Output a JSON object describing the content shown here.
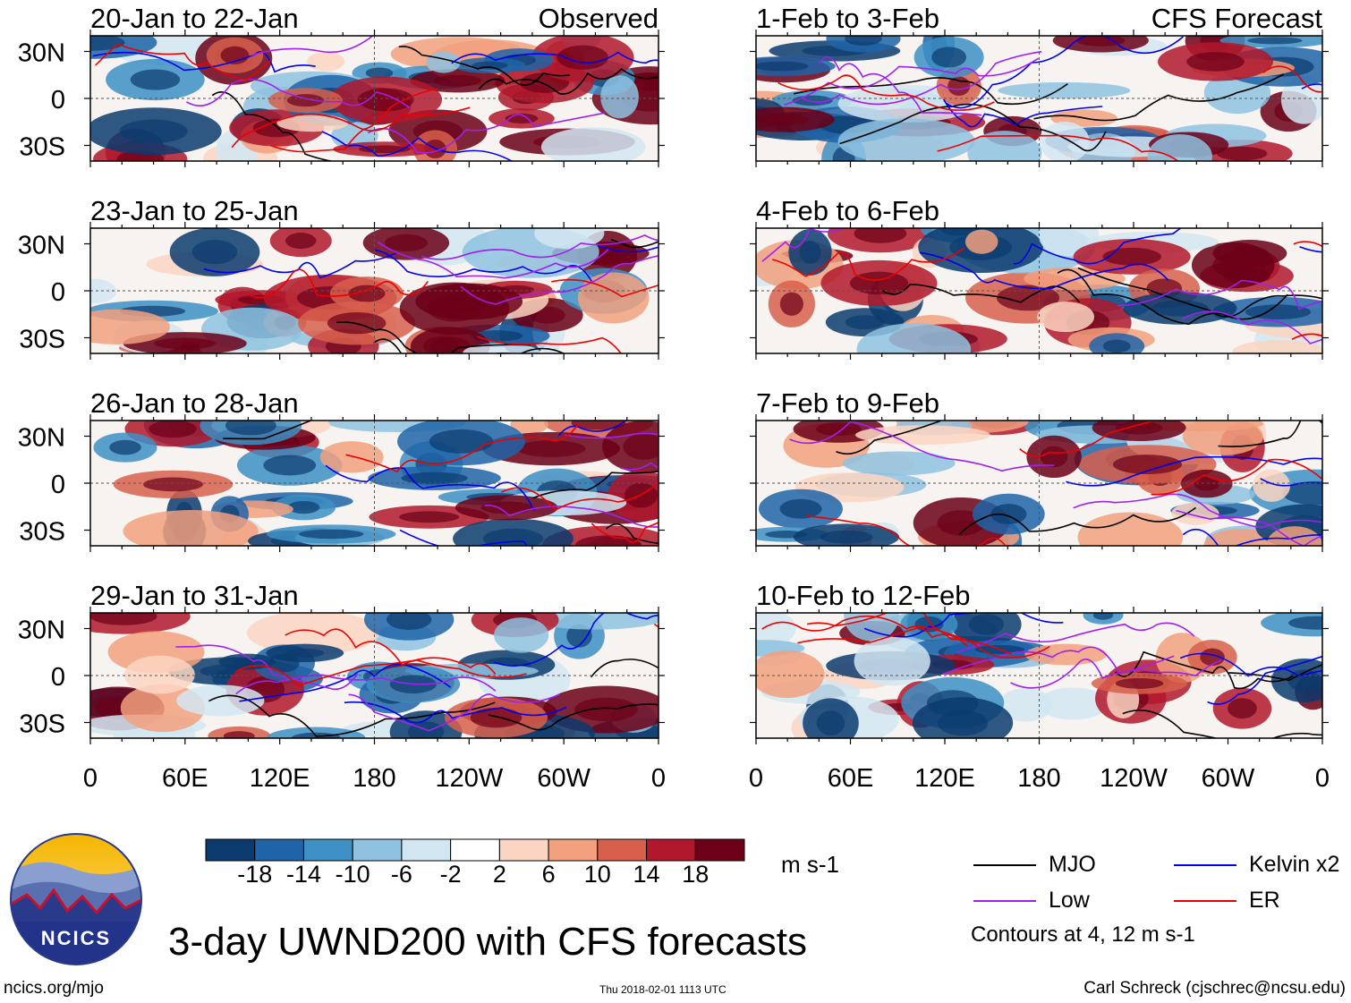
{
  "chart_data": {
    "type": "heatmap",
    "title": "3-day UWND200 with CFS forecasts",
    "panel_groups": {
      "left": "Observed",
      "right": "CFS Forecast"
    },
    "panels": [
      {
        "title": "20-Jan to 22-Jan",
        "column": "left"
      },
      {
        "title": "23-Jan to 25-Jan",
        "column": "left"
      },
      {
        "title": "26-Jan to 28-Jan",
        "column": "left"
      },
      {
        "title": "29-Jan to 31-Jan",
        "column": "left"
      },
      {
        "title": "1-Feb to 3-Feb",
        "column": "right"
      },
      {
        "title": "4-Feb to 6-Feb",
        "column": "right"
      },
      {
        "title": "7-Feb to 9-Feb",
        "column": "right"
      },
      {
        "title": "10-Feb to 12-Feb",
        "column": "right"
      }
    ],
    "x_ticks": [
      "0",
      "60E",
      "120E",
      "180",
      "120W",
      "60W",
      "0"
    ],
    "y_ticks": [
      "30N",
      "0",
      "30S"
    ],
    "xlim": [
      0,
      360
    ],
    "ylim": [
      -40,
      40
    ],
    "colorbar": {
      "unit": "m s-1",
      "labels": [
        "-18",
        "-14",
        "-10",
        "-6",
        "-2",
        "2",
        "6",
        "10",
        "14",
        "18"
      ],
      "colors": [
        "#0b3b6e",
        "#1f64a8",
        "#3d8fc4",
        "#8ec2e0",
        "#d2e6f2",
        "#ffffff",
        "#fbd5c2",
        "#f2a07e",
        "#d75f4c",
        "#b2182b",
        "#6b0018"
      ]
    },
    "legend": {
      "items": [
        {
          "label": "MJO",
          "color": "#000000"
        },
        {
          "label": "Kelvin x2",
          "color": "#0000ee"
        },
        {
          "label": "Low",
          "color": "#a020f0"
        },
        {
          "label": "ER",
          "color": "#ee0000"
        }
      ],
      "note": "Contours at 4, 12 m s-1"
    }
  },
  "logo": {
    "text": "NCICS"
  },
  "footer": {
    "left": "ncics.org/mjo",
    "center": "Thu 2018-02-01 1113 UTC",
    "right": "Carl Schreck (cjschrec@ncsu.edu)"
  }
}
